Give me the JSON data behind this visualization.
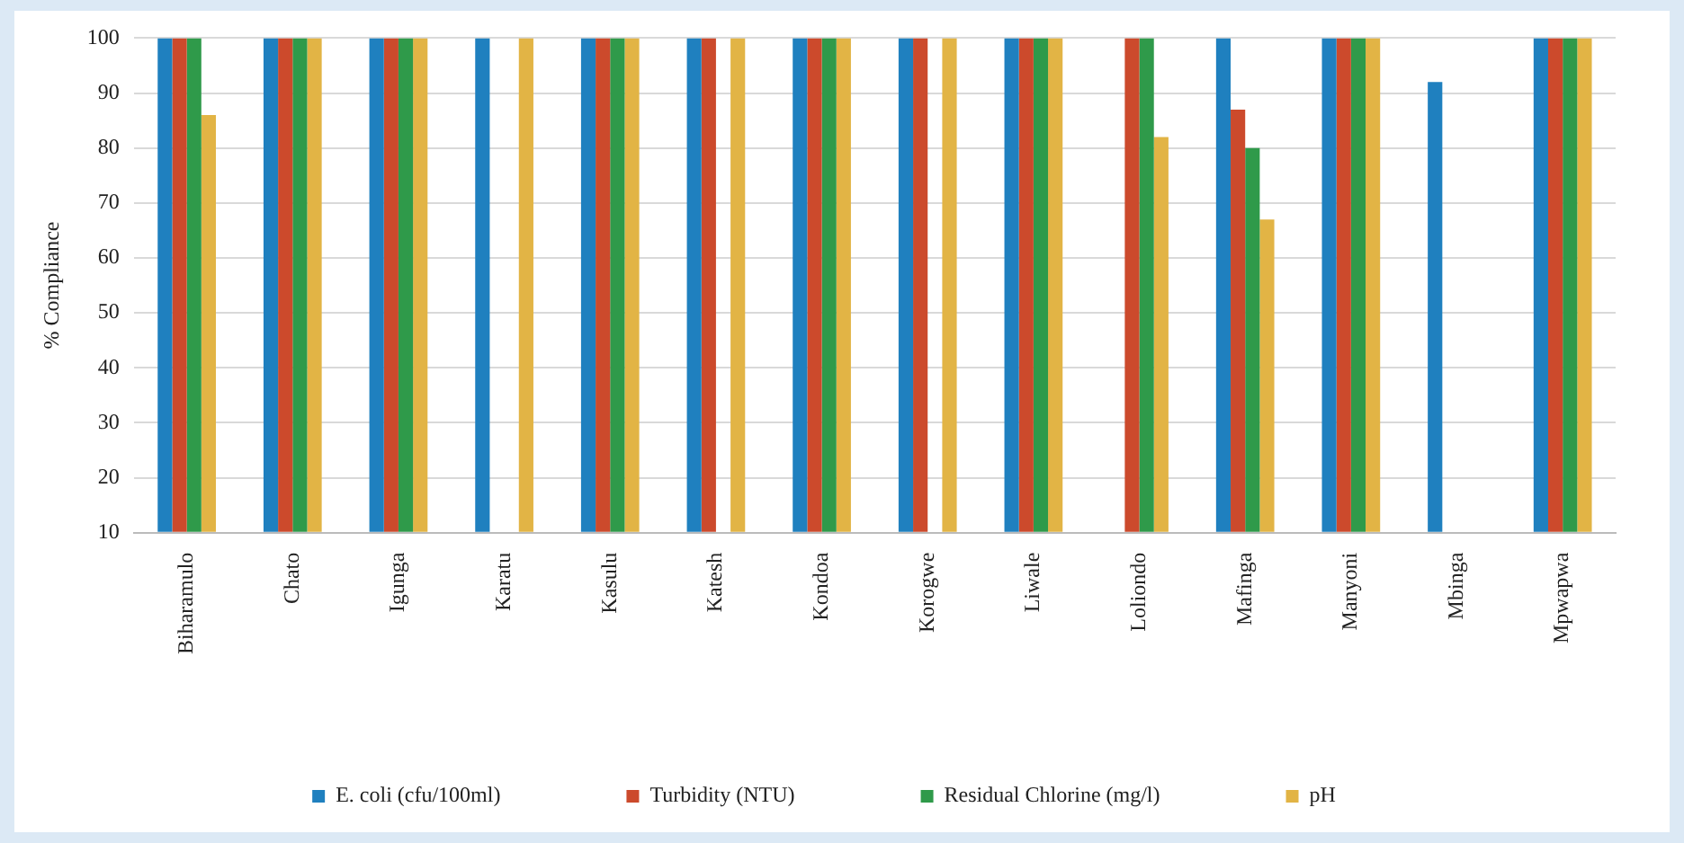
{
  "chart_data": {
    "type": "bar",
    "ylabel": "% Compliance",
    "categories": [
      "Biharamulo",
      "Chato",
      "Igunga",
      "Karatu",
      "Kasulu",
      "Katesh",
      "Kondoa",
      "Korogwe",
      "Liwale",
      "Loliondo",
      "Mafinga",
      "Manyoni",
      "Mbinga",
      "Mpwapwa"
    ],
    "series": [
      {
        "name": "E. coli (cfu/100ml)",
        "color": "#1f80bf",
        "values": [
          100,
          100,
          100,
          100,
          100,
          100,
          100,
          100,
          100,
          10,
          100,
          100,
          92,
          100
        ]
      },
      {
        "name": "Turbidity (NTU)",
        "color": "#cc4a2c",
        "values": [
          100,
          100,
          100,
          10,
          100,
          100,
          100,
          100,
          100,
          100,
          87,
          100,
          10,
          100
        ]
      },
      {
        "name": "Residual Chlorine (mg/l)",
        "color": "#2f9a4a",
        "values": [
          100,
          100,
          100,
          10,
          100,
          10,
          100,
          10,
          100,
          100,
          80,
          100,
          10,
          100
        ]
      },
      {
        "name": "pH",
        "color": "#e2b445",
        "values": [
          86,
          100,
          100,
          100,
          100,
          100,
          100,
          100,
          100,
          82,
          67,
          100,
          10,
          100
        ]
      }
    ],
    "ylim": [
      10,
      100
    ],
    "yticks": [
      10,
      20,
      30,
      40,
      50,
      60,
      70,
      80,
      90,
      100
    ],
    "grid": "y",
    "legend": "bottom"
  }
}
